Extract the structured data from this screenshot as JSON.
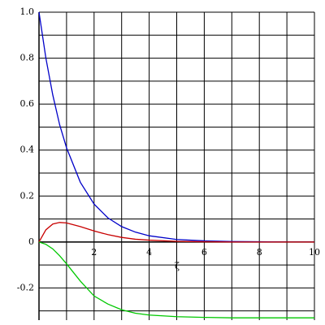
{
  "chart_data": {
    "type": "line",
    "xlabel": "ζ",
    "x": [
      0,
      0.25,
      0.5,
      0.75,
      1,
      1.5,
      2,
      2.5,
      3,
      3.5,
      4,
      5,
      6,
      7,
      8,
      9,
      10
    ],
    "series": [
      {
        "color": "#0000c8",
        "values": [
          1,
          0.8,
          0.64,
          0.51,
          0.41,
          0.26,
          0.165,
          0.105,
          0.067,
          0.043,
          0.027,
          0.011,
          0.005,
          0.002,
          0.001,
          0,
          0
        ]
      },
      {
        "color": "#c80000",
        "values": [
          0,
          0.053,
          0.078,
          0.085,
          0.083,
          0.067,
          0.048,
          0.032,
          0.02,
          0.012,
          0.008,
          0.003,
          0.001,
          0,
          0,
          0,
          0
        ]
      },
      {
        "color": "#00c800",
        "values": [
          0,
          -0.01,
          -0.03,
          -0.06,
          -0.095,
          -0.17,
          -0.235,
          -0.27,
          -0.295,
          -0.31,
          -0.318,
          -0.325,
          -0.328,
          -0.33,
          -0.33,
          -0.33,
          -0.33
        ]
      }
    ],
    "xlim": [
      0,
      10
    ],
    "ylim": [
      -0.34,
      1
    ],
    "xticks": [
      2,
      4,
      6,
      8,
      10
    ],
    "yticks": [
      {
        "value": 1,
        "label": "1.0"
      },
      0.8,
      0.6,
      0.4,
      0.2,
      0,
      -0.2
    ],
    "minor_xticks": [
      1,
      3,
      5,
      7,
      9
    ],
    "minor_yticks": [
      0.9,
      0.7,
      0.5,
      0.3,
      0.1,
      -0.1,
      -0.3
    ],
    "grid": true
  }
}
